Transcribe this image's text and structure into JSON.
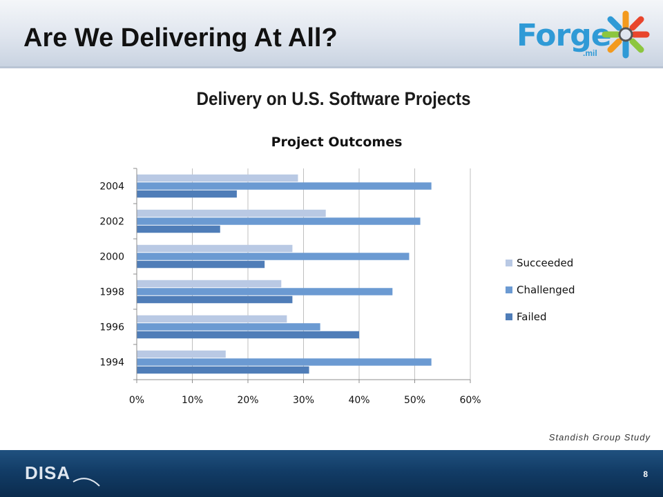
{
  "slide": {
    "title": "Are We Delivering At All?",
    "heading": "Delivery on U.S. Software Projects",
    "source": "Standish Group Study",
    "page_number": "8"
  },
  "logos": {
    "forge_word": "Forge",
    "forge_sub": ".mil",
    "disa": "DISA"
  },
  "colors": {
    "succeeded": "#b9c9e4",
    "challenged": "#6b9ad2",
    "failed": "#4f7db8"
  },
  "chart_data": {
    "type": "bar",
    "orientation": "horizontal",
    "title": "Project Outcomes",
    "categories": [
      "2004",
      "2002",
      "2000",
      "1998",
      "1996",
      "1994"
    ],
    "series": [
      {
        "name": "Succeeded",
        "values": [
          29,
          34,
          28,
          26,
          27,
          16
        ]
      },
      {
        "name": "Challenged",
        "values": [
          53,
          51,
          49,
          46,
          33,
          53
        ]
      },
      {
        "name": "Failed",
        "values": [
          18,
          15,
          23,
          28,
          40,
          31
        ]
      }
    ],
    "xlim": [
      0,
      60
    ],
    "xticks": [
      "0%",
      "10%",
      "20%",
      "30%",
      "40%",
      "50%",
      "60%"
    ],
    "grid": true,
    "legend_position": "right"
  }
}
